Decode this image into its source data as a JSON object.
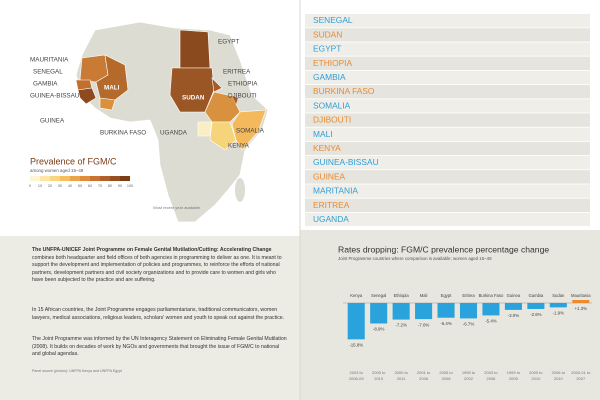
{
  "map": {
    "labels": [
      "MAURITANIA",
      "SENEGAL",
      "GAMBIA",
      "GUINEA-BISSAU",
      "GUINEA",
      "MALI",
      "BURKINA FASO",
      "EGYPT",
      "ERITREA",
      "ETHIOPIA",
      "DJIBOUTI",
      "SUDAN",
      "SOMALIA",
      "UGANDA",
      "KENYA"
    ],
    "legend": {
      "title": "Prevalence of FGM/C",
      "subtitle": "among women aged 15–49",
      "ticks": [
        0,
        10,
        20,
        30,
        40,
        50,
        60,
        70,
        80,
        90,
        100
      ],
      "note": "Most recent year available"
    }
  },
  "country_list": [
    "SENEGAL",
    "SUDAN",
    "EGYPT",
    "ETHIOPIA",
    "GAMBIA",
    "BURKINA FASO",
    "SOMALIA",
    "DJIBOUTI",
    "MALI",
    "KENYA",
    "GUINEA-BISSAU",
    "GUINEA",
    "MARITANIA",
    "ERITREA",
    "UGANDA"
  ],
  "paragraphs": [
    {
      "lead": "The UNFPA-UNICEF Joint Programme on Female Genital Mutilation/Cutting: Accelerating Change",
      "text": " combines both headquarter and field offices of both agencies in programming to deliver as one. It is meant to support the development and implementation of policies and programmes, to reinforce the efforts of national partners, development partners and civil society organizations and to provide care to women and girls who have been subjected to the practice and are suffering."
    },
    {
      "text": "In 15 African countries, the Joint Programme engages parliamentarians, traditional communicators, women lawyers, medical associations, religious leaders, scholars' women and youth to speak out against the practice."
    },
    {
      "text": "The Joint Programme was informed by the UN Interagency Statement on Eliminating Female Genital Mutilation (2008). It builds on decades of work by NGOs and governments that brought the issue of FGM/C to national and global agendas."
    }
  ],
  "source": "Panel source (photos): UNFPA Kenya and UNFPA Egypt",
  "chart_data": {
    "type": "bar",
    "title": "Rates dropping: FGM/C prevalence percentage change",
    "subtitle": "Joint Programme countries where comparison is available; women aged 15–49",
    "categories": [
      "Kenya",
      "Senegal",
      "Ethiopia",
      "Mali",
      "Egypt",
      "Eritrea",
      "Burkina Faso",
      "Guinea",
      "Gambia",
      "Sudan",
      "Mauritania"
    ],
    "values": [
      -15.8,
      -8.9,
      -7.2,
      -7.0,
      -6.4,
      -6.7,
      -5.4,
      -3.0,
      -2.6,
      -1.9,
      1.3
    ],
    "value_labels": [
      "-15.8%",
      "-8.9%",
      "-7.2%",
      "-7.0%",
      "-6.4%",
      "-6.7%",
      "-5.4%",
      "-3.0%",
      "-2.6%",
      "-1.9%",
      "+1.3%"
    ],
    "colors": [
      "#2aa3dc",
      "#2aa3dc",
      "#2aa3dc",
      "#2aa3dc",
      "#2aa3dc",
      "#2aa3dc",
      "#2aa3dc",
      "#2aa3dc",
      "#2aa3dc",
      "#2aa3dc",
      "#ef8a2c"
    ],
    "periods": [
      [
        "2003 to",
        "2008-09"
      ],
      [
        "2005 to",
        "2010"
      ],
      [
        "2000 to",
        "2011"
      ],
      [
        "2001 to",
        "2006"
      ],
      [
        "2005 to",
        "2008"
      ],
      [
        "1995 to",
        "2002"
      ],
      [
        "2003 to",
        "2006"
      ],
      [
        "1999 to",
        "2005"
      ],
      [
        "2005 to",
        "2010"
      ],
      [
        "2006 to",
        "2010"
      ],
      [
        "2000-01 to",
        "2007"
      ]
    ]
  }
}
